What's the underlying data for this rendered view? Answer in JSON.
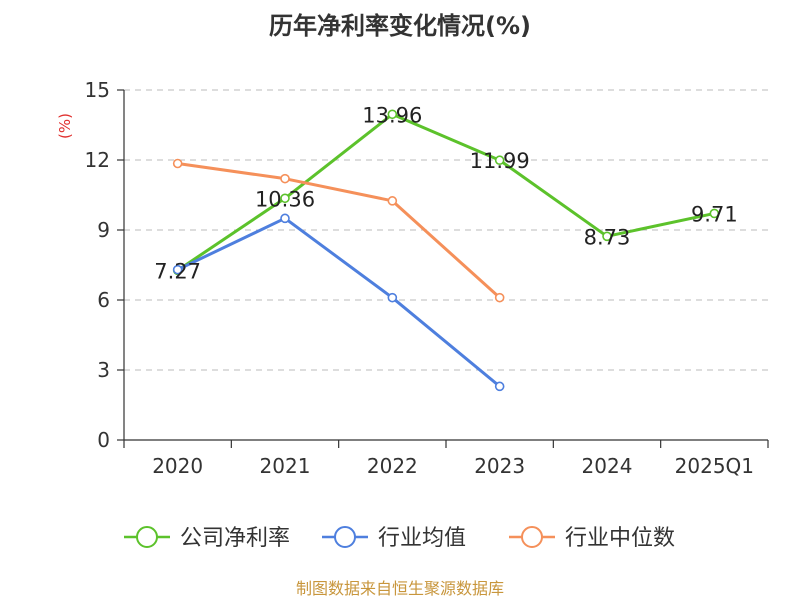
{
  "chart_data": {
    "type": "line",
    "title": "历年净利率变化情况(%)",
    "ylabel": "(%)",
    "xlabel": "",
    "categories": [
      "2020",
      "2021",
      "2022",
      "2023",
      "2024",
      "2025Q1"
    ],
    "ylim": [
      0,
      15
    ],
    "yticks": [
      0,
      3,
      6,
      9,
      12,
      15
    ],
    "grid": true,
    "legend_position": "bottom",
    "series": [
      {
        "name": "公司净利率",
        "color": "#5cc22b",
        "values": [
          7.27,
          10.36,
          13.96,
          11.99,
          8.73,
          9.71
        ],
        "labels": [
          "7.27",
          "10.36",
          "13.96",
          "11.99",
          "8.73",
          "9.71"
        ]
      },
      {
        "name": "行业均值",
        "color": "#4e7fde",
        "values": [
          7.3,
          9.5,
          6.1,
          2.3,
          null,
          null
        ]
      },
      {
        "name": "行业中位数",
        "color": "#f5905a",
        "values": [
          11.85,
          11.2,
          10.25,
          6.1,
          null,
          null
        ]
      }
    ]
  },
  "source": "制图数据来自恒生聚源数据库"
}
